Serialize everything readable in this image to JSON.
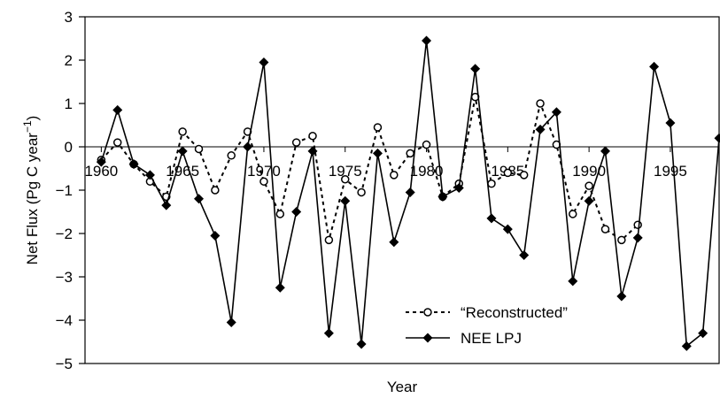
{
  "chart_data": {
    "type": "line",
    "xlabel": "Year",
    "ylabel_main": "Net Flux (Pg C year",
    "ylabel_sup": "−1",
    "ylabel_close": ")",
    "xlim": [
      1959,
      1998
    ],
    "ylim": [
      -5,
      3
    ],
    "yticks": [
      3,
      2,
      1,
      0,
      -1,
      -2,
      -3,
      -4,
      -5
    ],
    "ytick_labels": [
      "3",
      "2",
      "1",
      "0",
      "−1",
      "−2",
      "−3",
      "−4",
      "−5"
    ],
    "xticks": [
      1960,
      1965,
      1970,
      1975,
      1980,
      1985,
      1990,
      1995
    ],
    "xtick_labels": [
      "1960",
      "1965",
      "1970",
      "1975",
      "1980",
      "1985",
      "1990",
      "1995"
    ],
    "grid": false,
    "legend_position": "bottom-right",
    "series": [
      {
        "name": "“Reconstructed”",
        "style": "dashed-open-circle",
        "color": "#000000",
        "x": [
          1960,
          1961,
          1962,
          1963,
          1964,
          1965,
          1966,
          1967,
          1968,
          1969,
          1970,
          1971,
          1972,
          1973,
          1974,
          1975,
          1976,
          1977,
          1978,
          1979,
          1980,
          1981,
          1982,
          1983,
          1984,
          1985,
          1986,
          1987,
          1988,
          1989,
          1990,
          1991,
          1992,
          1993
        ],
        "y": [
          -0.3,
          0.1,
          -0.4,
          -0.8,
          -1.15,
          0.35,
          -0.05,
          -1.0,
          -0.2,
          0.35,
          -0.8,
          -1.55,
          0.1,
          0.25,
          -2.15,
          -0.75,
          -1.05,
          0.45,
          -0.65,
          -0.15,
          0.05,
          -1.15,
          -0.85,
          1.15,
          -0.85,
          -0.6,
          -0.65,
          1.0,
          0.05,
          -1.55,
          -0.9,
          -1.9,
          -2.15,
          -1.8
        ]
      },
      {
        "name": "NEE LPJ",
        "style": "solid-filled-diamond",
        "color": "#000000",
        "x": [
          1960,
          1961,
          1962,
          1963,
          1964,
          1965,
          1966,
          1967,
          1968,
          1969,
          1970,
          1971,
          1972,
          1973,
          1974,
          1975,
          1976,
          1977,
          1978,
          1979,
          1980,
          1981,
          1982,
          1983,
          1984,
          1985,
          1986,
          1987,
          1988,
          1989,
          1990,
          1991,
          1992,
          1993,
          1994,
          1995,
          1996,
          1997,
          1998
        ],
        "y": [
          -0.35,
          0.85,
          -0.4,
          -0.65,
          -1.35,
          -0.1,
          -1.2,
          -2.05,
          -4.05,
          0.0,
          1.95,
          -3.25,
          -1.5,
          -0.1,
          -4.3,
          -1.25,
          -4.55,
          -0.15,
          -2.2,
          -1.05,
          2.45,
          -1.15,
          -0.95,
          1.8,
          -1.65,
          -1.9,
          -2.5,
          0.4,
          0.8,
          -3.1,
          -1.25,
          -0.1,
          -3.45,
          -2.1,
          1.85,
          0.55,
          -4.6,
          -4.3,
          0.2
        ]
      }
    ]
  }
}
